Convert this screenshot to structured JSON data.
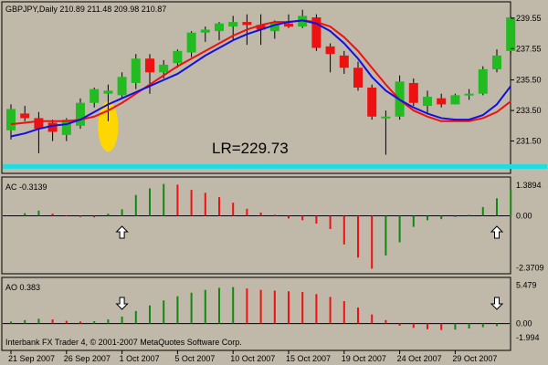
{
  "chart_data": {
    "type": "candlestick",
    "symbol_header": "GBPJPY,Daily  210.89 211.48 209.98 210.87",
    "annotation": "LR=229.73",
    "copyright": "Interbank FX Trader 4, © 2001-2007 MetaQuotes Software Corp.",
    "price_ticks": [
      "239.55",
      "237.55",
      "235.50",
      "233.50",
      "231.50"
    ],
    "price_tick_values": [
      239.55,
      237.55,
      235.5,
      233.5,
      231.5
    ],
    "price_range": [
      229.5,
      240.5
    ],
    "date_labels": [
      "21 Sep 2007",
      "26 Sep 2007",
      "1 Oct 2007",
      "5 Oct 2007",
      "10 Oct 2007",
      "15 Oct 2007",
      "19 Oct 2007",
      "24 Oct 2007",
      "29 Oct 2007"
    ],
    "date_label_index": [
      0,
      4,
      8,
      12,
      16,
      20,
      24,
      28,
      32
    ],
    "candles": [
      {
        "o": 232.2,
        "h": 233.9,
        "l": 231.6,
        "c": 233.6
      },
      {
        "o": 233.3,
        "h": 233.8,
        "l": 232.8,
        "c": 233.0
      },
      {
        "o": 233.0,
        "h": 233.4,
        "l": 230.7,
        "c": 232.3
      },
      {
        "o": 232.7,
        "h": 232.9,
        "l": 231.5,
        "c": 232.1
      },
      {
        "o": 231.9,
        "h": 233.0,
        "l": 231.5,
        "c": 232.9
      },
      {
        "o": 232.5,
        "h": 234.3,
        "l": 232.3,
        "c": 234.0
      },
      {
        "o": 234.0,
        "h": 235.0,
        "l": 233.7,
        "c": 234.9
      },
      {
        "o": 234.6,
        "h": 235.2,
        "l": 232.8,
        "c": 234.8
      },
      {
        "o": 234.5,
        "h": 236.0,
        "l": 234.3,
        "c": 235.7
      },
      {
        "o": 235.3,
        "h": 237.2,
        "l": 234.9,
        "c": 236.9
      },
      {
        "o": 236.9,
        "h": 237.2,
        "l": 234.6,
        "c": 236.0
      },
      {
        "o": 236.0,
        "h": 236.8,
        "l": 235.6,
        "c": 236.5
      },
      {
        "o": 236.6,
        "h": 237.5,
        "l": 236.3,
        "c": 237.4
      },
      {
        "o": 237.3,
        "h": 238.7,
        "l": 237.0,
        "c": 238.6
      },
      {
        "o": 238.6,
        "h": 239.0,
        "l": 238.0,
        "c": 238.8
      },
      {
        "o": 238.7,
        "h": 239.3,
        "l": 238.1,
        "c": 239.2
      },
      {
        "o": 239.0,
        "h": 239.7,
        "l": 238.1,
        "c": 239.3
      },
      {
        "o": 239.3,
        "h": 239.8,
        "l": 237.8,
        "c": 239.1
      },
      {
        "o": 239.1,
        "h": 239.8,
        "l": 237.8,
        "c": 238.8
      },
      {
        "o": 238.7,
        "h": 239.4,
        "l": 238.2,
        "c": 239.3
      },
      {
        "o": 239.2,
        "h": 239.8,
        "l": 238.9,
        "c": 239.0
      },
      {
        "o": 239.0,
        "h": 240.1,
        "l": 238.9,
        "c": 239.7
      },
      {
        "o": 239.6,
        "h": 239.8,
        "l": 237.4,
        "c": 237.6
      },
      {
        "o": 237.7,
        "h": 237.9,
        "l": 236.0,
        "c": 237.2
      },
      {
        "o": 237.1,
        "h": 237.4,
        "l": 235.9,
        "c": 236.3
      },
      {
        "o": 236.3,
        "h": 236.7,
        "l": 234.8,
        "c": 235.0
      },
      {
        "o": 235.0,
        "h": 235.2,
        "l": 232.9,
        "c": 233.1
      },
      {
        "o": 233.1,
        "h": 233.5,
        "l": 230.6,
        "c": 233.1
      },
      {
        "o": 233.1,
        "h": 235.8,
        "l": 232.9,
        "c": 235.4
      },
      {
        "o": 235.3,
        "h": 235.6,
        "l": 233.8,
        "c": 234.0
      },
      {
        "o": 233.8,
        "h": 234.8,
        "l": 233.3,
        "c": 234.4
      },
      {
        "o": 234.3,
        "h": 234.6,
        "l": 233.7,
        "c": 233.9
      },
      {
        "o": 233.9,
        "h": 234.6,
        "l": 233.9,
        "c": 234.5
      },
      {
        "o": 234.5,
        "h": 234.9,
        "l": 234.2,
        "c": 234.6
      },
      {
        "o": 234.6,
        "h": 236.4,
        "l": 234.5,
        "c": 236.2
      },
      {
        "o": 236.2,
        "h": 237.5,
        "l": 236.0,
        "c": 237.1
      },
      {
        "o": 237.4,
        "h": 239.7,
        "l": 237.2,
        "c": 239.6
      }
    ],
    "ma_blue": [
      231.8,
      232.0,
      232.3,
      232.5,
      232.6,
      232.9,
      233.4,
      233.9,
      234.3,
      234.7,
      235.1,
      235.5,
      235.9,
      236.5,
      237.1,
      237.6,
      238.1,
      238.5,
      238.8,
      239.1,
      239.3,
      239.4,
      239.2,
      238.7,
      237.9,
      236.9,
      235.7,
      234.8,
      234.2,
      233.7,
      233.3,
      233.0,
      232.9,
      232.9,
      233.2,
      233.9,
      235.1
    ],
    "ma_red": [
      232.6,
      232.7,
      232.8,
      232.8,
      232.8,
      232.9,
      233.1,
      233.5,
      234.0,
      234.6,
      235.2,
      235.8,
      236.4,
      236.9,
      237.4,
      237.9,
      238.4,
      238.8,
      239.1,
      239.3,
      239.3,
      239.4,
      239.3,
      239.0,
      238.3,
      237.4,
      236.3,
      235.2,
      234.2,
      233.5,
      233.1,
      232.8,
      232.8,
      232.8,
      233.0,
      233.4,
      234.1
    ],
    "highlight_index": 7,
    "ac": {
      "label": "AC -0.3139",
      "ticks": [
        "1.3894",
        "0.00",
        "-2.3709"
      ],
      "tick_values": [
        1.3894,
        0,
        -2.3709
      ],
      "range": [
        -2.55,
        1.6
      ],
      "values": [
        0.0,
        0.12,
        0.24,
        0.1,
        0.02,
        -0.05,
        -0.07,
        0.1,
        0.3,
        0.95,
        1.25,
        1.45,
        1.42,
        1.18,
        1.05,
        0.85,
        0.6,
        0.32,
        0.15,
        0.05,
        -0.12,
        -0.2,
        -0.35,
        -0.6,
        -1.3,
        -1.9,
        -2.4,
        -1.8,
        -1.2,
        -0.5,
        -0.2,
        -0.15,
        -0.05,
        0.05,
        0.4,
        0.8,
        1.2
      ],
      "arrows": [
        {
          "index": 8,
          "direction": "up"
        },
        {
          "index": 35,
          "direction": "up"
        }
      ]
    },
    "ao": {
      "label": "AO 0.383",
      "ticks": [
        "5.479",
        "0.00",
        "-1.994"
      ],
      "tick_values": [
        5.479,
        0,
        -1.994
      ],
      "range": [
        -2.25,
        5.8
      ],
      "values": [
        0.3,
        0.5,
        0.7,
        0.6,
        0.4,
        0.3,
        0.35,
        0.6,
        1.0,
        1.8,
        2.6,
        3.3,
        3.9,
        4.4,
        4.8,
        5.1,
        5.2,
        5.0,
        4.8,
        4.7,
        4.6,
        4.5,
        4.2,
        3.8,
        3.2,
        2.3,
        1.3,
        0.5,
        -0.3,
        -0.6,
        -0.8,
        -0.9,
        -0.85,
        -0.7,
        -0.5,
        -0.35,
        -0.1
      ],
      "arrows": [
        {
          "index": 8,
          "direction": "down"
        },
        {
          "index": 35,
          "direction": "down"
        }
      ]
    },
    "colors": {
      "background": "#c0b8a8",
      "up_candle": "#22bb22",
      "down_candle": "#ee1111",
      "wick": "#000000",
      "ma_blue": "#1111dd",
      "ma_red": "#ee1111",
      "highlight": "#ffd700",
      "baseline": "#22dddd",
      "hist_up": "#118811",
      "hist_down": "#ee1111"
    }
  }
}
